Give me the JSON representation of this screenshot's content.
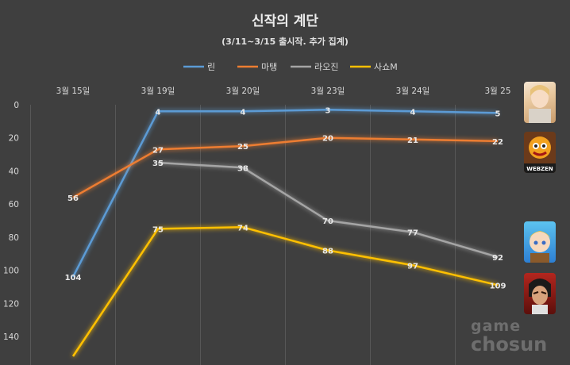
{
  "chart_data": {
    "type": "line",
    "title": "신작의 계단",
    "subtitle": "(3/11~3/15 출시작. 추가 집계)",
    "categories": [
      "3월 15일",
      "3월 19일",
      "3월 20일",
      "3월 23일",
      "3월 24일",
      "3월 25"
    ],
    "y_ticks": [
      "0",
      "20",
      "40",
      "60",
      "80",
      "100",
      "120",
      "140"
    ],
    "ylim": [
      0,
      140
    ],
    "y_inverted": true,
    "grid": true,
    "legend_position": "top",
    "series": [
      {
        "name": "린",
        "color": "#5b9bd5",
        "values": [
          104,
          4,
          4,
          3,
          4,
          5
        ]
      },
      {
        "name": "마탱",
        "color": "#ed7d31",
        "values": [
          56,
          27,
          25,
          20,
          21,
          22
        ]
      },
      {
        "name": "라오진",
        "color": "#a5a5a5",
        "values": [
          null,
          35,
          38,
          70,
          77,
          92
        ]
      },
      {
        "name": "사쇼M",
        "color": "#ffc000",
        "values": [
          152,
          75,
          74,
          88,
          97,
          109
        ]
      }
    ],
    "series_labels": [
      [
        "104",
        "4",
        "4",
        "3",
        "4",
        "5"
      ],
      [
        "56",
        "27",
        "25",
        "20",
        "21",
        "22"
      ],
      [
        "",
        "35",
        "38",
        "70",
        "77",
        "92"
      ],
      [
        "",
        "75",
        "74",
        "88",
        "97",
        "109"
      ]
    ]
  },
  "watermark": {
    "line1": "game",
    "line2": "chosun"
  },
  "game_icons": [
    {
      "name": "lin-game-icon",
      "text": ""
    },
    {
      "name": "matang-game-icon",
      "text": "WEBZEN"
    },
    {
      "name": "laojin-game-icon",
      "text": ""
    },
    {
      "name": "sashom-game-icon",
      "text": ""
    }
  ]
}
